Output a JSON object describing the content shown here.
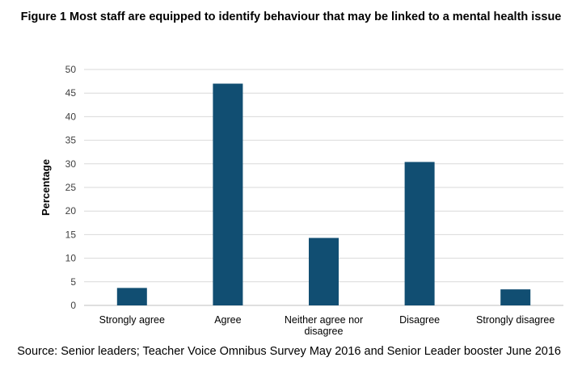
{
  "title": "Figure 1 Most staff are equipped to identify behaviour that may be linked to a mental health issue",
  "source": "Source: Senior leaders; Teacher Voice Omnibus Survey May 2016 and Senior Leader booster June 2016",
  "colors": {
    "bar": "#114e72",
    "grid": "#d9d9d9",
    "axis": "#bfbfbf"
  },
  "chart_data": {
    "type": "bar",
    "categories": [
      "Strongly agree",
      "Agree",
      "Neither agree nor disagree",
      "Disagree",
      "Strongly disagree"
    ],
    "category_lines": [
      [
        "Strongly agree"
      ],
      [
        "Agree"
      ],
      [
        "Neither agree nor",
        "disagree"
      ],
      [
        "Disagree"
      ],
      [
        "Strongly disagree"
      ]
    ],
    "values": [
      3.7,
      47,
      14.3,
      30.4,
      3.4
    ],
    "ylabel": "Percentage",
    "xlabel": "",
    "ylim": [
      0,
      50
    ],
    "yticks": [
      0,
      5,
      10,
      15,
      20,
      25,
      30,
      35,
      40,
      45,
      50
    ],
    "grid": true,
    "legend": "none"
  }
}
